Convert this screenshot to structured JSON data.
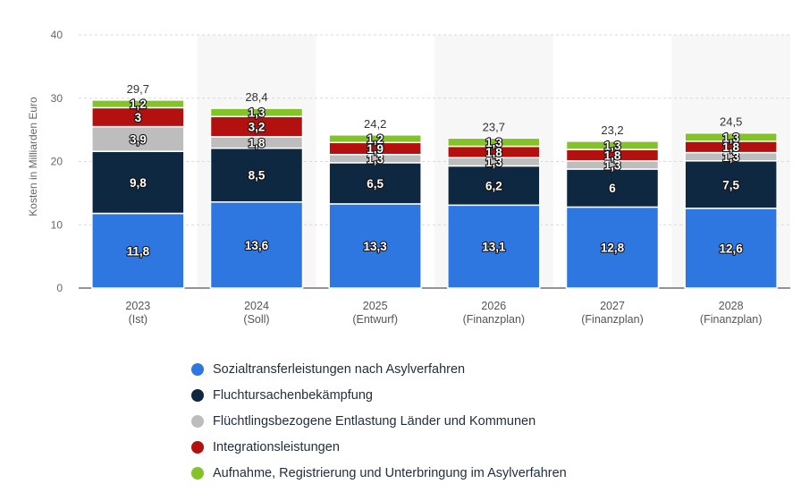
{
  "chart_data": {
    "type": "bar",
    "stacked": true,
    "ylabel": "Kosten in Milliarden Euro",
    "ylim": [
      0,
      40
    ],
    "yticks": [
      "0",
      "10",
      "20",
      "30",
      "40"
    ],
    "grid": true,
    "categories": [
      [
        "2023",
        "(Ist)"
      ],
      [
        "2024",
        "(Soll)"
      ],
      [
        "2025",
        "(Entwurf)"
      ],
      [
        "2026",
        "(Finanzplan)"
      ],
      [
        "2027",
        "(Finanzplan)"
      ],
      [
        "2028",
        "(Finanzplan)"
      ]
    ],
    "totals": [
      "29,7",
      "28,4",
      "24,2",
      "23,7",
      "23,2",
      "24,5"
    ],
    "series": [
      {
        "name": "Sozialtransferleistungen nach Asylverfahren",
        "color": "#2f77e0",
        "values": [
          11.8,
          13.6,
          13.3,
          13.1,
          12.8,
          12.6
        ],
        "labels": [
          "11,8",
          "13,6",
          "13,3",
          "13,1",
          "12,8",
          "12,6"
        ]
      },
      {
        "name": "Fluchtursachenbekämpfung",
        "color": "#0f2842",
        "values": [
          9.8,
          8.5,
          6.5,
          6.2,
          6,
          7.5
        ],
        "labels": [
          "9,8",
          "8,5",
          "6,5",
          "6,2",
          "6",
          "7,5"
        ]
      },
      {
        "name": "Flüchtlingsbezogene Entlastung Länder und Kommunen",
        "color": "#bdbdbd",
        "values": [
          3.9,
          1.8,
          1.3,
          1.3,
          1.3,
          1.3
        ],
        "labels": [
          "3,9",
          "1,8",
          "1,3",
          "1,3",
          "1,3",
          "1,3"
        ]
      },
      {
        "name": "Integrationsleistungen",
        "color": "#b31010",
        "values": [
          3,
          3.2,
          1.9,
          1.8,
          1.8,
          1.8
        ],
        "labels": [
          "3",
          "3,2",
          "1,9",
          "1,8",
          "1,8",
          "1,8"
        ]
      },
      {
        "name": "Aufnahme, Registrierung und Unterbringung im Asylverfahren",
        "color": "#84c22a",
        "values": [
          1.2,
          1.3,
          1.2,
          1.3,
          1.3,
          1.3
        ],
        "labels": [
          "1,2",
          "1,3",
          "1,2",
          "1,3",
          "1,3",
          "1,3"
        ]
      }
    ]
  }
}
